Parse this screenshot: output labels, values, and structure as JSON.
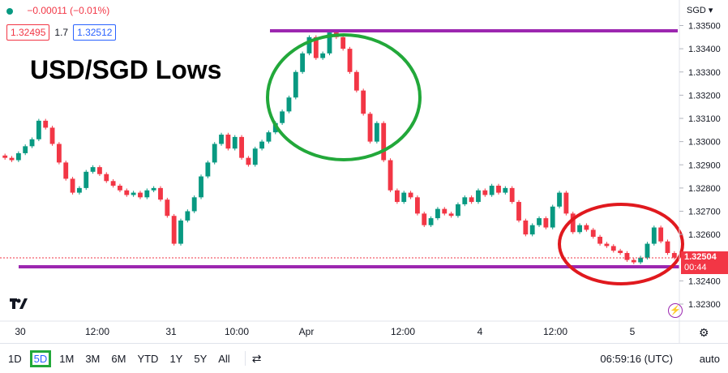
{
  "header": {
    "change": "−0.00011 (−0.01%)",
    "bid": "1.32495",
    "spread": "1.7",
    "ask": "1.32512",
    "currency": "SGD"
  },
  "title": "USD/SGD Lows",
  "current_price_tag": {
    "price": "1.32504",
    "countdown": "00:44"
  },
  "ranges": [
    "1D",
    "5D",
    "1M",
    "3M",
    "6M",
    "YTD",
    "1Y",
    "5Y",
    "All"
  ],
  "active_range": "5D",
  "clock": "06:59:16 (UTC)",
  "scale_mode": "auto",
  "colors": {
    "up": "#089981",
    "down": "#f23645",
    "levels": "#9c27b0",
    "high_circle": "#22a83a",
    "low_circle": "#e0191e"
  },
  "chart_data": {
    "type": "candlestick",
    "title": "USD/SGD Lows",
    "y_ticks": [
      "1.33500",
      "1.33400",
      "1.33300",
      "1.33200",
      "1.33100",
      "1.33000",
      "1.32900",
      "1.32800",
      "1.32700",
      "1.32600",
      "1.32400",
      "1.32300"
    ],
    "ylim": [
      1.3227,
      1.3357
    ],
    "x_ticks": [
      "30",
      "12:00",
      "31",
      "10:00",
      "Apr",
      "12:00",
      "4",
      "12:00",
      "5"
    ],
    "series_close": [
      1.3293,
      1.3292,
      1.3295,
      1.3298,
      1.3301,
      1.3309,
      1.3306,
      1.3299,
      1.3291,
      1.3284,
      1.3278,
      1.328,
      1.3287,
      1.3289,
      1.3286,
      1.3283,
      1.3281,
      1.3279,
      1.3277,
      1.3278,
      1.3276,
      1.3279,
      1.328,
      1.3275,
      1.3268,
      1.3256,
      1.3266,
      1.327,
      1.3276,
      1.3285,
      1.3291,
      1.3299,
      1.3303,
      1.3297,
      1.3302,
      1.3293,
      1.329,
      1.3297,
      1.33,
      1.3304,
      1.3308,
      1.3313,
      1.3319,
      1.333,
      1.3338,
      1.3345,
      1.3336,
      1.3338,
      1.3347,
      1.3345,
      1.334,
      1.333,
      1.3322,
      1.3312,
      1.33,
      1.3308,
      1.3292,
      1.3279,
      1.3274,
      1.3278,
      1.3276,
      1.3269,
      1.3264,
      1.3267,
      1.3271,
      1.3269,
      1.3268,
      1.3273,
      1.3276,
      1.3274,
      1.3279,
      1.3277,
      1.3281,
      1.3278,
      1.328,
      1.3274,
      1.3266,
      1.326,
      1.3264,
      1.3267,
      1.3263,
      1.3272,
      1.3278,
      1.3269,
      1.3261,
      1.3264,
      1.3262,
      1.3259,
      1.3256,
      1.3255,
      1.3253,
      1.3252,
      1.3249,
      1.3248,
      1.325,
      1.3256,
      1.3263,
      1.3257,
      1.3252,
      1.325
    ],
    "support_level": 1.3245,
    "resistance_level": 1.3348
  }
}
